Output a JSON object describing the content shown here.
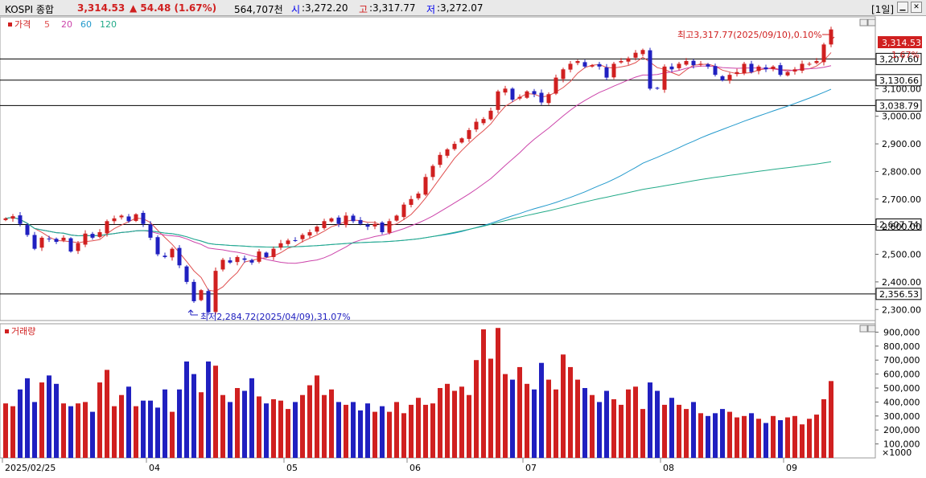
{
  "header": {
    "symbol": "KOSPI 종합",
    "price": "3,314.53",
    "change": "▲ 54.48 (1.67%)",
    "volume": "564,707천",
    "open_label": "시",
    "open": ":3,272.20",
    "high_label": "고",
    "high": ":3,317.77",
    "low_label": "저",
    "low": ":3,272.07",
    "period": "[1일]",
    "colors": {
      "up": "#d02020",
      "down": "#2020c0",
      "label": "#0000ee"
    }
  },
  "price_panel": {
    "legend": [
      {
        "label": "가격",
        "color": "#d02020"
      },
      {
        "label": "5",
        "color": "#e05050"
      },
      {
        "label": "20",
        "color": "#cc44aa"
      },
      {
        "label": "60",
        "color": "#2299cc"
      },
      {
        "label": "120",
        "color": "#22aa88"
      }
    ],
    "max_annotation": "최고3,317.77(2025/09/10),0.10%",
    "min_annotation": "최저2,284.72(2025/04/09),31.07%",
    "current_price_tag": "3,314.53",
    "current_change_tag": "1.67%"
  },
  "volume_panel": {
    "title": "거래량",
    "unit": "×1000"
  },
  "chart_data": [
    {
      "type": "candlestick",
      "title": "KOSPI 종합",
      "x_start_label": "2025/02/25",
      "x_month_labels": [
        "2025/02/25",
        "04",
        "05",
        "06",
        "07",
        "08",
        "09"
      ],
      "ylim": [
        2260,
        3360
      ],
      "y_ticks": [
        "2,300.00",
        "2,400.00",
        "2,500.00",
        "2,600.00",
        "2,700.00",
        "2,800.00",
        "2,900.00",
        "3,000.00",
        "3,100.00"
      ],
      "horizontal_levels": [
        "3,207.60",
        "3,130.66",
        "3,038.79",
        "2,607.74",
        "2,356.53"
      ],
      "close": [
        2630,
        2638,
        2610,
        2570,
        2520,
        2560,
        2555,
        2545,
        2560,
        2510,
        2540,
        2575,
        2560,
        2580,
        2620,
        2630,
        2640,
        2620,
        2645,
        2610,
        2560,
        2500,
        2490,
        2520,
        2460,
        2400,
        2330,
        2370,
        2290,
        2440,
        2480,
        2470,
        2490,
        2480,
        2470,
        2510,
        2490,
        2520,
        2540,
        2550,
        2550,
        2570,
        2580,
        2600,
        2620,
        2630,
        2610,
        2640,
        2620,
        2610,
        2600,
        2610,
        2580,
        2620,
        2640,
        2680,
        2700,
        2720,
        2780,
        2820,
        2860,
        2880,
        2900,
        2920,
        2950,
        2980,
        2990,
        3020,
        3090,
        3100,
        3060,
        3070,
        3090,
        3080,
        3050,
        3080,
        3140,
        3170,
        3190,
        3200,
        3180,
        3185,
        3180,
        3140,
        3190,
        3200,
        3210,
        3230,
        3240,
        3100,
        3100,
        3180,
        3170,
        3190,
        3200,
        3185,
        3190,
        3180,
        3150,
        3130,
        3150,
        3160,
        3190,
        3160,
        3180,
        3170,
        3180,
        3150,
        3160,
        3170,
        3190,
        3190,
        3200,
        3260,
        3314.53
      ],
      "ma5_color": "#e05050",
      "ma20_color": "#cc44aa",
      "ma60_color": "#2299cc",
      "ma120_color": "#22aa88"
    },
    {
      "type": "bar",
      "title": "거래량",
      "unit": "×1000",
      "ylim": [
        0,
        960000
      ],
      "y_ticks": [
        "100,000",
        "200,000",
        "300,000",
        "400,000",
        "500,000",
        "600,000",
        "700,000",
        "800,000",
        "900,000"
      ],
      "values": [
        390000,
        370000,
        490000,
        570000,
        400000,
        540000,
        590000,
        530000,
        390000,
        370000,
        390000,
        400000,
        330000,
        540000,
        630000,
        370000,
        450000,
        510000,
        370000,
        410000,
        410000,
        360000,
        490000,
        330000,
        490000,
        690000,
        600000,
        470000,
        690000,
        660000,
        450000,
        400000,
        500000,
        480000,
        570000,
        440000,
        390000,
        420000,
        410000,
        350000,
        400000,
        450000,
        520000,
        590000,
        450000,
        490000,
        400000,
        380000,
        400000,
        340000,
        390000,
        330000,
        370000,
        330000,
        400000,
        320000,
        380000,
        430000,
        380000,
        390000,
        500000,
        530000,
        480000,
        510000,
        450000,
        700000,
        920000,
        710000,
        930000,
        600000,
        560000,
        650000,
        530000,
        490000,
        680000,
        560000,
        490000,
        740000,
        650000,
        560000,
        500000,
        450000,
        400000,
        480000,
        420000,
        380000,
        490000,
        510000,
        350000,
        540000,
        480000,
        380000,
        430000,
        380000,
        350000,
        400000,
        320000,
        300000,
        320000,
        350000,
        330000,
        290000,
        300000,
        320000,
        280000,
        250000,
        300000,
        270000,
        290000,
        300000,
        240000,
        280000,
        310000,
        420000,
        550000
      ]
    }
  ]
}
